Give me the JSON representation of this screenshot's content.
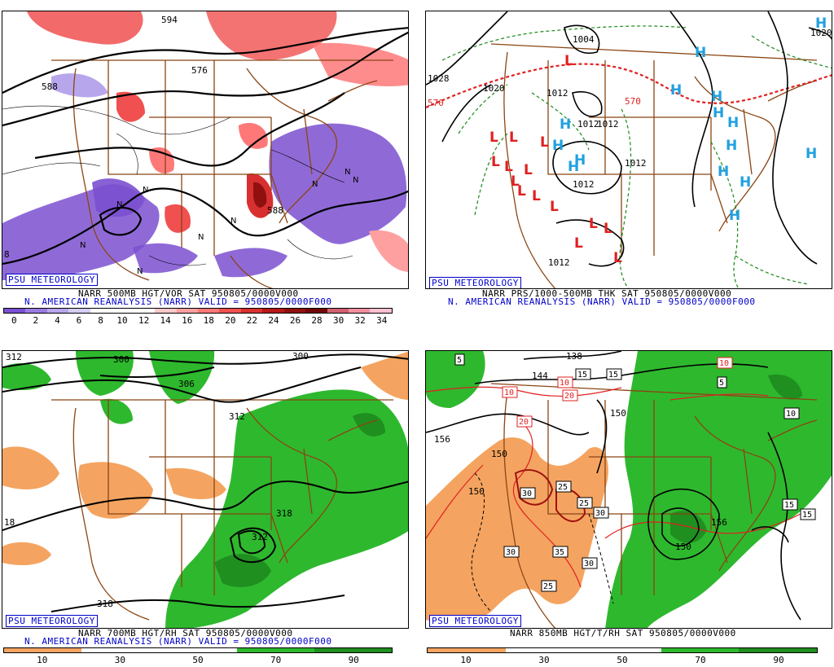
{
  "panels": [
    {
      "id": "tl",
      "psu_label": "PSU METEOROLOGY",
      "caption_line1": "NARR 500MB HGT/VOR SAT 950805/0000V000",
      "caption_line2": "N. AMERICAN REANALYSIS (NARR) VALID = 950805/0000F000",
      "contour_labels": [
        "594",
        "576",
        "588",
        "588",
        "8"
      ],
      "colorbar": {
        "ticks": [
          "0",
          "2",
          "4",
          "6",
          "8",
          "10",
          "12",
          "14",
          "16",
          "18",
          "20",
          "22",
          "24",
          "26",
          "28",
          "30",
          "32",
          "34"
        ],
        "colors": [
          "#7b50d0",
          "#9a7ce0",
          "#b8a6ec",
          "#d6cdf5",
          "#ffffff",
          "#ffffff",
          "#ffffff",
          "#ffc8c8",
          "#ffa0a0",
          "#ff7878",
          "#f05050",
          "#d83030",
          "#b81818",
          "#901010",
          "#700808",
          "#d06070",
          "#f090a0",
          "#ffc0d0"
        ]
      }
    },
    {
      "id": "tr",
      "psu_label": "PSU METEOROLOGY",
      "caption_line1": "NARR PRS/1000-500MB THK SAT 950805/0000V000",
      "caption_line2": "N. AMERICAN REANALYSIS (NARR) VALID = 950805/0000F000",
      "contour_labels": [
        "1028",
        "1020",
        "1004",
        "1012",
        "1012",
        "1012",
        "1012",
        "1012",
        "1012",
        "1020",
        "570",
        "570",
        "570"
      ],
      "high_symbol": "H",
      "low_symbol": "L"
    },
    {
      "id": "bl",
      "psu_label": "PSU METEOROLOGY",
      "caption_line1": "NARR 700MB HGT/RH SAT 950805/0000V000",
      "caption_line2": "N. AMERICAN REANALYSIS (NARR) VALID = 950805/0000F000",
      "contour_labels": [
        "312",
        "300",
        "306",
        "300",
        "312",
        "318",
        "318",
        "312",
        "18"
      ],
      "colorbar": {
        "ticks": [
          "10",
          "30",
          "50",
          "70",
          "90"
        ],
        "colors": [
          "#f4a460",
          "#f4a460",
          "#ffffff",
          "#ffffff",
          "#ffffff",
          "#ffffff",
          "#2eb82e",
          "#2eb82e",
          "#1f8f1f",
          "#1f8f1f"
        ]
      }
    },
    {
      "id": "br",
      "psu_label": "PSU METEOROLOGY",
      "caption_line1": "NARR 850MB HGT/T/RH SAT 950805/0000V000",
      "caption_line2": "",
      "contour_labels": [
        "138",
        "144",
        "150",
        "156",
        "150",
        "150",
        "156",
        "150"
      ],
      "temp_labels": [
        "5",
        "15",
        "15",
        "10",
        "20",
        "20",
        "10",
        "10",
        "5",
        "30",
        "25",
        "25",
        "30",
        "30",
        "35",
        "30",
        "25",
        "15",
        "15",
        "10"
      ],
      "colorbar": {
        "ticks": [
          "10",
          "30",
          "50",
          "70",
          "90"
        ],
        "colors": [
          "#f4a460",
          "#f4a460",
          "#ffffff",
          "#ffffff",
          "#ffffff",
          "#ffffff",
          "#2eb82e",
          "#2eb82e",
          "#1f8f1f",
          "#1f8f1f"
        ]
      }
    }
  ],
  "colors": {
    "state_lines": "#8b4513",
    "contours": "#000000",
    "thickness": "#1a8a1a",
    "thickness_570": "#e02020",
    "high": "#20a0e0",
    "low": "#e02020",
    "vorticity": "#e06060",
    "neg_vorticity": "#7b50d0",
    "dry": "#f4a460",
    "moist": "#2eb82e",
    "temperature": "#e02020"
  }
}
